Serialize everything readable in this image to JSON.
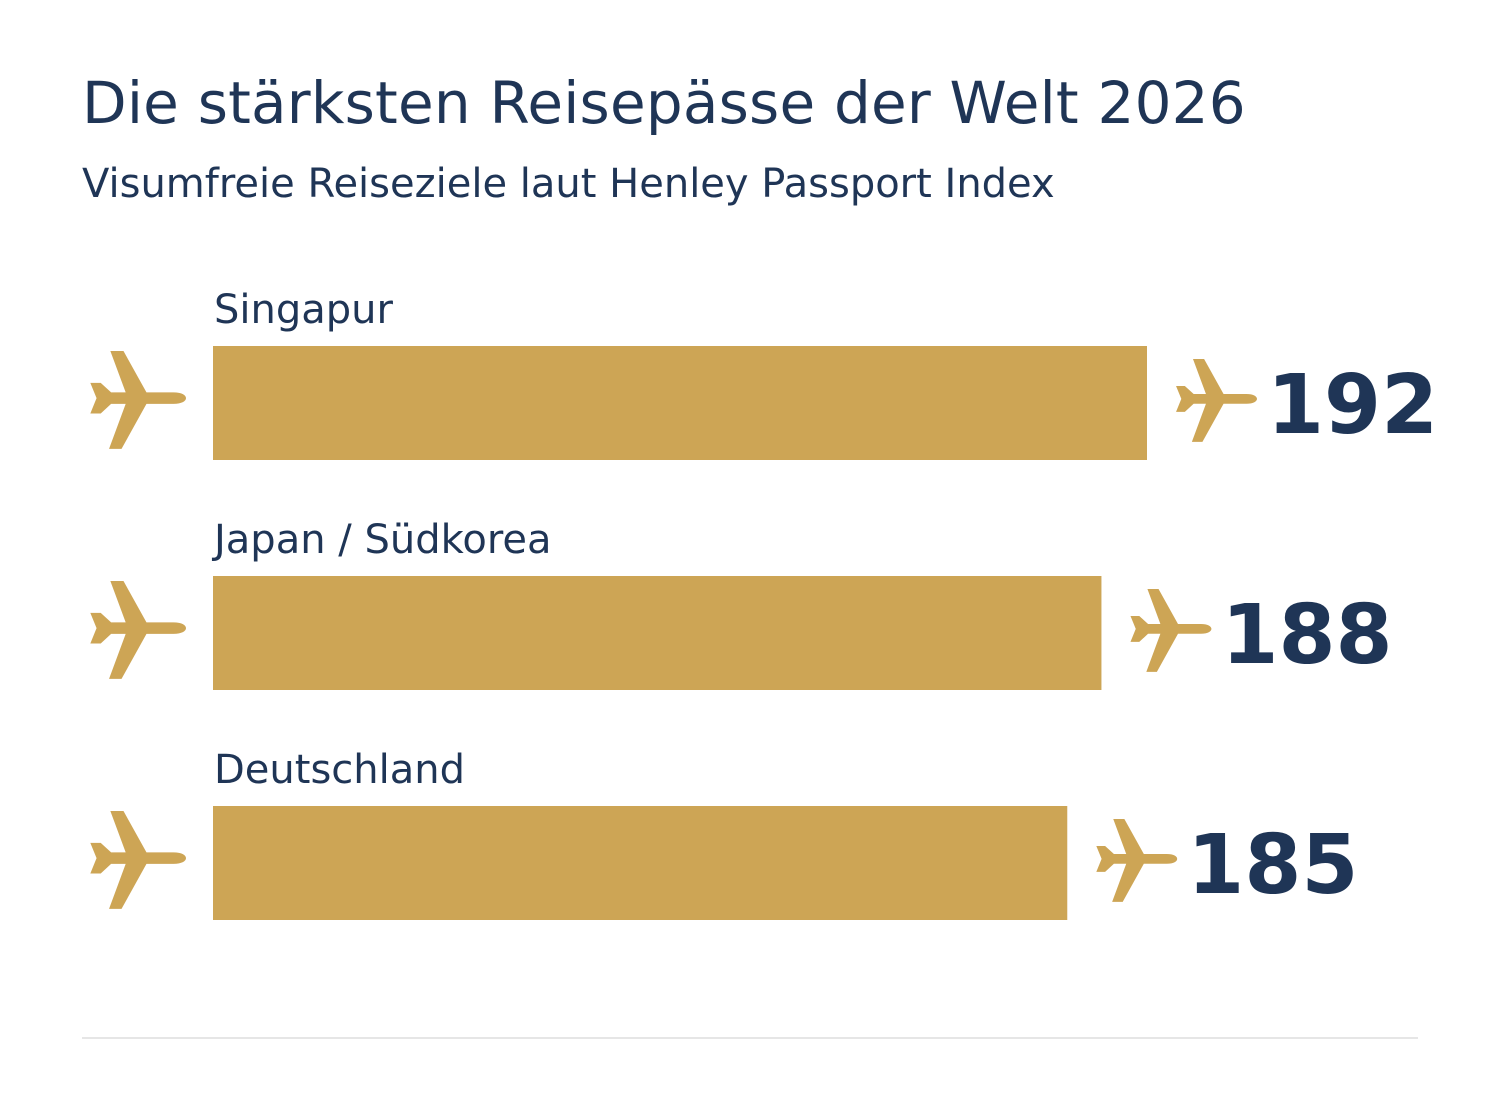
{
  "title": "Die stärksten Reisepässe der Welt 2026",
  "subtitle": "Visumfreie Reiseziele laut Henley Passport Index",
  "colors": {
    "bar": "#CDA555",
    "plane": "#CDA555",
    "text": "#1F3556",
    "divider": "#E6E6E6"
  },
  "icons": {
    "left": "airplane-icon",
    "right": "airplane-icon"
  },
  "chart_data": {
    "type": "bar",
    "orientation": "horizontal",
    "title": "Die stärksten Reisepässe der Welt 2026",
    "subtitle": "Visumfreie Reiseziele laut Henley Passport Index",
    "categories": [
      "Singapur",
      "Japan / Südkorea",
      "Deutschland"
    ],
    "values": [
      192,
      188,
      185
    ],
    "xlabel": "",
    "ylabel": "",
    "xlim": [
      110,
      192
    ],
    "grid": false,
    "legend": "none"
  }
}
